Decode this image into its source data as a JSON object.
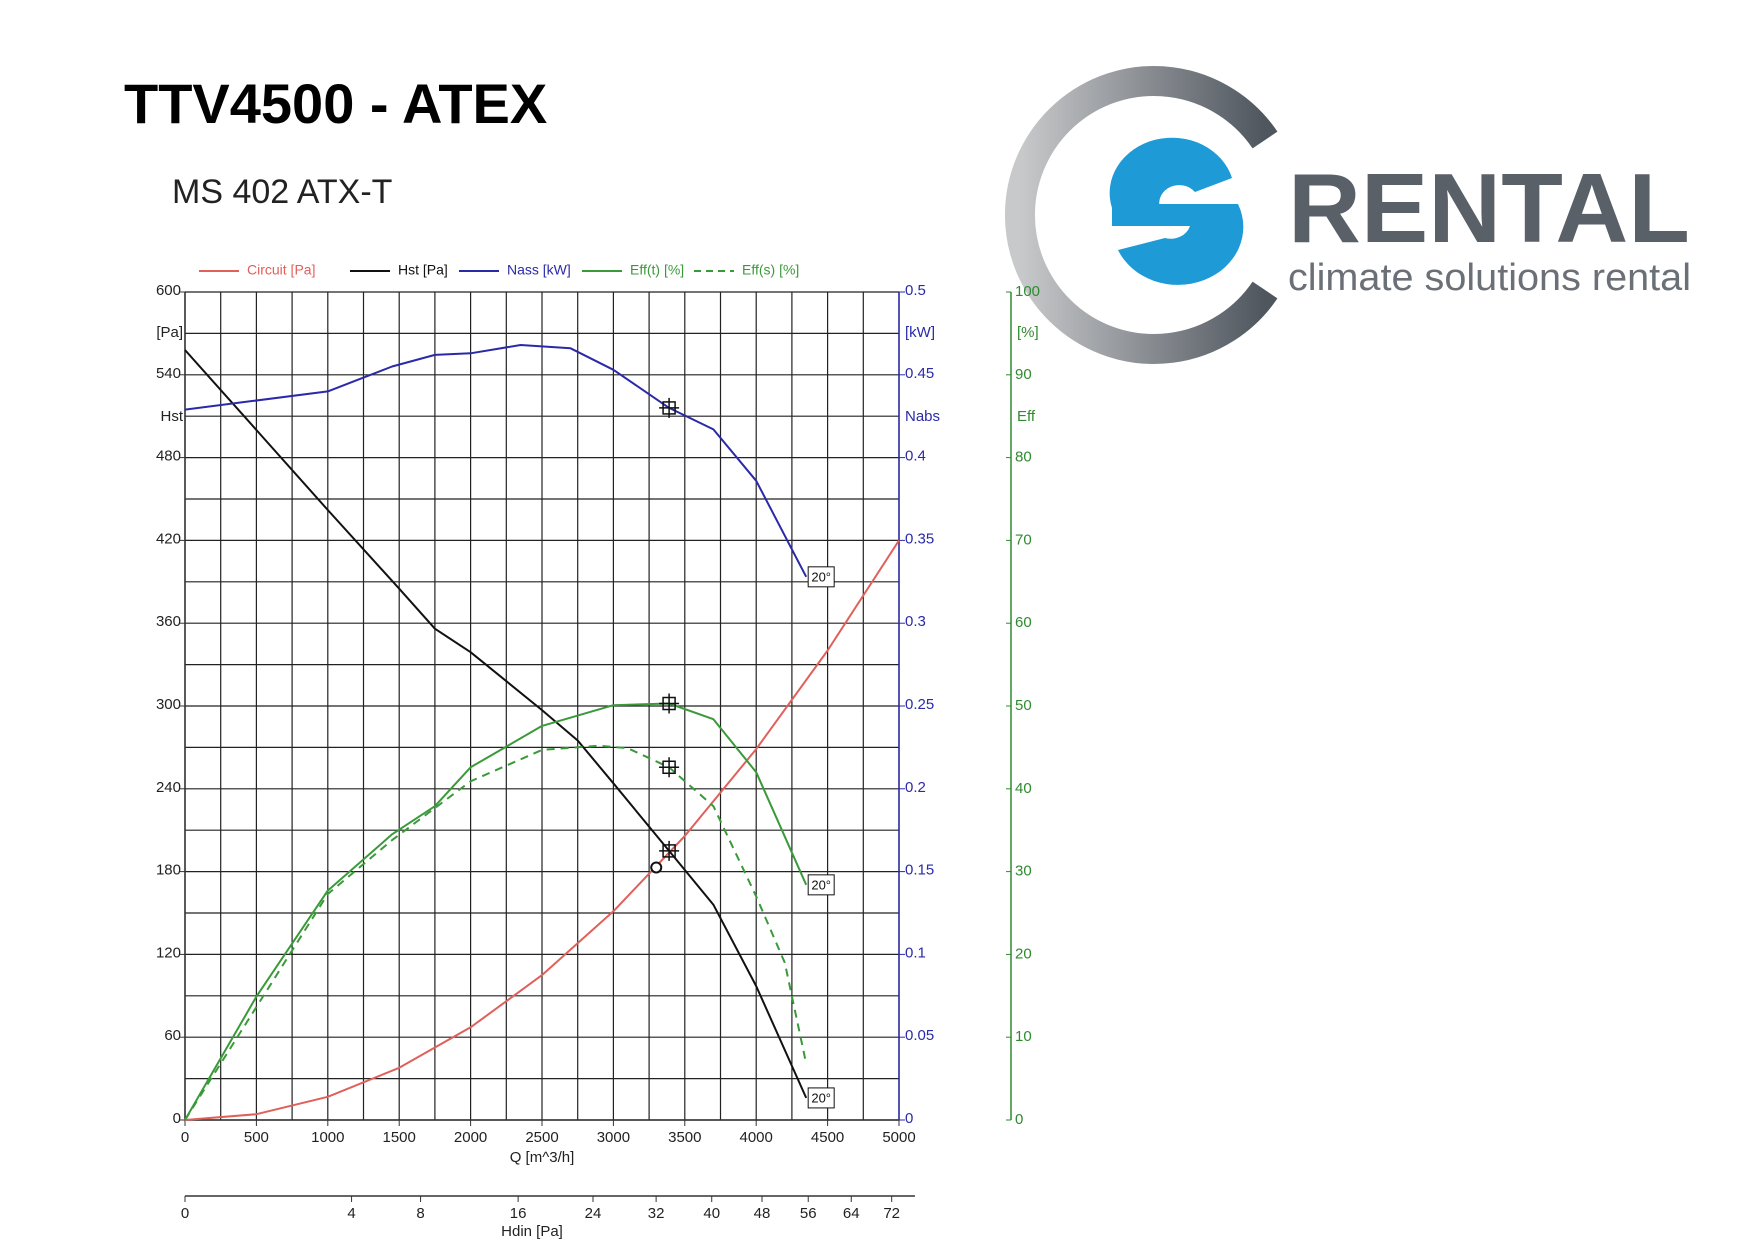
{
  "chart_data": {
    "type": "line",
    "title": "TTV4500 - ATEX",
    "subtitle": "MS 402 ATX-T",
    "xlabel": "Q  [m^3/h]",
    "xlim": [
      0,
      5000
    ],
    "xticks": [
      0,
      500,
      1000,
      1500,
      2000,
      2500,
      3000,
      3500,
      4000,
      4500,
      5000
    ],
    "xgrid": [
      0,
      250,
      500,
      750,
      1000,
      1250,
      1500,
      1750,
      2000,
      2250,
      2500,
      2750,
      3000,
      3250,
      3500,
      3750,
      4000,
      4250,
      4500,
      4750,
      5000
    ],
    "ylim": [
      0,
      600
    ],
    "yticks": [
      0,
      60,
      120,
      180,
      240,
      300,
      360,
      420,
      480,
      540,
      600
    ],
    "yunit": "[Pa]",
    "ylabel": "Hst",
    "ygrid": [
      0,
      30,
      60,
      90,
      120,
      150,
      180,
      210,
      240,
      270,
      300,
      330,
      360,
      390,
      420,
      450,
      480,
      510,
      540,
      570,
      600
    ],
    "y2lim": [
      0,
      0.5
    ],
    "y2ticks": [
      0,
      0.05,
      0.1,
      0.15,
      0.2,
      0.25,
      0.3,
      0.35,
      0.4,
      0.45,
      0.5
    ],
    "y2unit": "[kW]",
    "y2label": "Nabs",
    "y2color": "#2a2aa8",
    "y3lim": [
      0,
      100
    ],
    "y3ticks": [
      0,
      10,
      20,
      30,
      40,
      50,
      60,
      70,
      80,
      90,
      100
    ],
    "y3unit": "[%]",
    "y3label": "Eff",
    "y3color": "#2e8b2e",
    "x2label": "Hdin  [Pa]",
    "x2scale": "sqrt",
    "x2lim": [
      0,
      73.5
    ],
    "x2ticks": [
      0,
      4,
      8,
      16,
      24,
      32,
      40,
      48,
      56,
      64,
      72
    ],
    "grid": true,
    "series": [
      {
        "name": "Circuit [Pa]",
        "color": "#e0605a",
        "x": [
          0,
          500,
          1000,
          1500,
          2000,
          2500,
          3000,
          3500,
          4000,
          4500,
          5000
        ],
        "values": [
          0,
          4.2,
          16.8,
          37.8,
          67.2,
          105,
          151.2,
          205.8,
          268.8,
          340.2,
          420
        ],
        "marker": "circle",
        "marker_x": 3300,
        "marker_y": 183
      },
      {
        "name": "Hst [Pa]",
        "color": "#111111",
        "x": [
          0,
          500,
          1000,
          1500,
          1750,
          2000,
          2500,
          2750,
          3000,
          3390,
          3700,
          4000,
          4350
        ],
        "values": [
          558,
          500,
          442,
          385,
          356,
          339,
          297,
          275,
          244,
          195,
          156,
          97,
          16
        ],
        "marker": "crosshair",
        "marker_x": 3390,
        "marker_y": 195,
        "end_label": "20°"
      },
      {
        "name": "Nass [kW]",
        "color": "#2a2aa8",
        "axis": "y2",
        "x": [
          0,
          1000,
          1450,
          1750,
          2000,
          2350,
          2700,
          3000,
          3390,
          3700,
          4000,
          4350
        ],
        "values": [
          0.429,
          0.44,
          0.455,
          0.462,
          0.463,
          0.468,
          0.466,
          0.453,
          0.43,
          0.417,
          0.386,
          0.328
        ],
        "marker": "crosshair",
        "marker_x": 3390,
        "marker_y": 0.43,
        "end_label": "20°"
      },
      {
        "name": "Eff(t) [%]",
        "color": "#3a9a3a",
        "axis": "y3",
        "x": [
          0,
          500,
          1000,
          1450,
          1750,
          2000,
          2500,
          3000,
          3390,
          3700,
          4000,
          4350
        ],
        "values": [
          0,
          14.9,
          27.7,
          34.5,
          37.9,
          42.6,
          47.6,
          50.1,
          50.3,
          48.4,
          42,
          28.4
        ],
        "marker": "crosshair",
        "marker_x": 3390,
        "marker_y": 50.3,
        "end_label": "20°"
      },
      {
        "name": "Eff(s) [%]",
        "color": "#3a9a3a",
        "axis": "y3",
        "dashed": true,
        "x": [
          0,
          1000,
          1450,
          2000,
          2500,
          2900,
          3100,
          3390,
          3700,
          4000,
          4200,
          4350
        ],
        "values": [
          0,
          27.3,
          33.8,
          40.9,
          44.7,
          45.2,
          44.9,
          42.6,
          37.9,
          27,
          19,
          6.8
        ],
        "marker": "crosshair",
        "marker_x": 3390,
        "marker_y": 42.6
      }
    ]
  },
  "logo": {
    "name": "RENTAL",
    "tagline": "climate solutions rental"
  }
}
